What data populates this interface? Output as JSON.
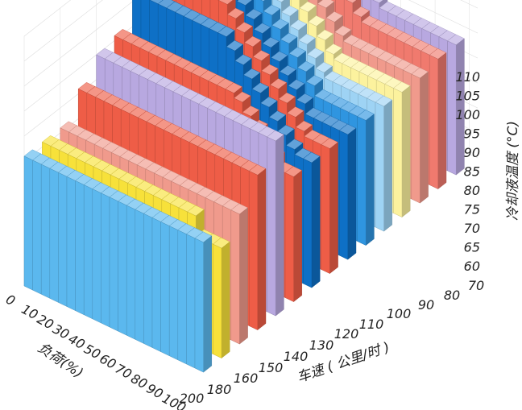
{
  "chart_data": {
    "type": "bar3d",
    "title": "",
    "z_axis": {
      "label": "冷却液温度 (°C)",
      "ticks": [
        60,
        65,
        70,
        75,
        80,
        85,
        90,
        95,
        100,
        105,
        110
      ],
      "range": [
        60,
        110
      ]
    },
    "load_axis": {
      "label": "负荷(%)",
      "ticks": [
        0,
        10,
        20,
        30,
        40,
        50,
        60,
        70,
        80,
        90,
        100
      ]
    },
    "speed_axis": {
      "label": "车速 ( 公里/时 )",
      "ticks": [
        200,
        180,
        160,
        150,
        140,
        130,
        120,
        110,
        100,
        90,
        80,
        70
      ]
    },
    "series": [
      {
        "speed": 200,
        "color": "#5bb8ee",
        "values": [
          86,
          86,
          86,
          86,
          86,
          86,
          86,
          86,
          86,
          86,
          86,
          86,
          86,
          86,
          86,
          86,
          86,
          86,
          86,
          86,
          86
        ]
      },
      {
        "speed": 180,
        "color": "#f7e13a",
        "values": [
          86,
          86,
          86,
          86,
          86,
          86,
          86,
          86,
          86,
          86,
          86,
          86,
          86,
          86,
          86,
          86,
          86,
          86,
          82,
          82,
          82
        ]
      },
      {
        "speed": 160,
        "color": "#f09a8c",
        "values": [
          86,
          86,
          86,
          86,
          86,
          86,
          86,
          86,
          86,
          86,
          86,
          86,
          86,
          86,
          86,
          86,
          86,
          86,
          86,
          86,
          86
        ]
      },
      {
        "speed": 150,
        "color": "#ee5d47",
        "values": [
          91,
          91,
          91,
          91,
          91,
          91,
          91,
          91,
          91,
          91,
          91,
          91,
          91,
          91,
          91,
          91,
          91,
          91,
          91,
          91,
          91
        ]
      },
      {
        "speed": 140,
        "color": "#b8a8e0",
        "values": [
          95,
          95,
          95,
          95,
          95,
          95,
          95,
          95,
          95,
          95,
          95,
          95,
          95,
          95,
          95,
          95,
          95,
          95,
          95,
          95,
          95
        ]
      },
      {
        "speed": 130,
        "color": "#ee5d47",
        "values": [
          96,
          96,
          96,
          96,
          96,
          96,
          96,
          96,
          96,
          96,
          96,
          96,
          96,
          96,
          95,
          93,
          91,
          89,
          87,
          85,
          85
        ]
      },
      {
        "speed": 120,
        "color": "#0e70c6",
        "values": [
          102,
          102,
          102,
          102,
          102,
          102,
          102,
          102,
          102,
          102,
          102,
          100,
          98,
          96,
          94,
          92,
          90,
          88,
          86,
          85,
          85
        ]
      },
      {
        "speed": 110,
        "color": "#ee5d47",
        "values": [
          104,
          104,
          104,
          104,
          104,
          104,
          104,
          104,
          104,
          102,
          100,
          98,
          96,
          94,
          92,
          90,
          88,
          86,
          85,
          85,
          85
        ]
      },
      {
        "speed": 100,
        "color": "#0e70c6",
        "values": [
          105,
          105,
          105,
          105,
          105,
          105,
          105,
          103,
          101,
          99,
          97,
          95,
          93,
          91,
          89,
          87,
          85,
          85,
          85,
          85,
          85
        ]
      },
      {
        "speed": 90,
        "color": "#2f95e0",
        "values": [
          106,
          106,
          106,
          106,
          106,
          105,
          103,
          101,
          99,
          97,
          95,
          93,
          91,
          89,
          87,
          85,
          85,
          85,
          85,
          85,
          85
        ]
      },
      {
        "speed": 80,
        "color": "#9ed3f4",
        "values": [
          106,
          106,
          106,
          106,
          104,
          102,
          100,
          98,
          96,
          94,
          92,
          90,
          88,
          86,
          85,
          85,
          85,
          85,
          85,
          85,
          85
        ]
      },
      {
        "speed": 70,
        "color": "#fcf29e",
        "values": [
          106,
          106,
          106,
          104,
          102,
          100,
          98,
          96,
          94,
          92,
          90,
          88,
          86,
          85,
          85,
          85,
          85,
          85,
          85,
          85,
          85
        ]
      },
      {
        "speed": 70,
        "color": "#f09a8c",
        "values": [
          106,
          106,
          104,
          102,
          100,
          98,
          96,
          94,
          92,
          90,
          88,
          86,
          85,
          85,
          85,
          85,
          85,
          85,
          85,
          85,
          85
        ]
      },
      {
        "speed": 70,
        "color": "#f07a6e",
        "values": [
          107,
          107,
          105,
          103,
          101,
          99,
          97,
          95,
          93,
          91,
          89,
          87,
          86,
          86,
          86,
          86,
          86,
          86,
          86,
          86,
          86
        ]
      },
      {
        "speed": 70,
        "color": "#b8a8e0",
        "values": [
          107,
          107,
          105,
          103,
          101,
          99,
          97,
          95,
          93,
          91,
          89,
          87,
          86,
          86,
          86,
          86,
          86,
          86,
          86,
          86,
          86
        ]
      }
    ]
  }
}
